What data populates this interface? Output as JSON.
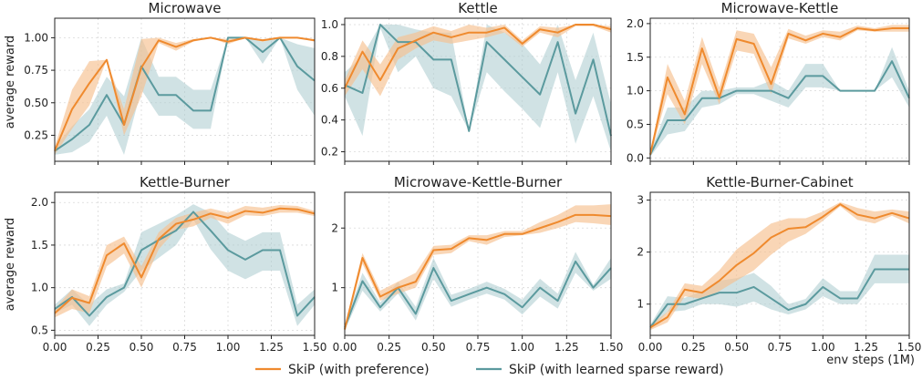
{
  "figure": {
    "ylabel": "average reward",
    "xlabel": "env steps (1M)",
    "legend": [
      {
        "name": "SkiP (with preference)",
        "color": "#ef8a2e",
        "band": "#f6c08f"
      },
      {
        "name": "SkiP (with learned sparse reward)",
        "color": "#5b9a9e",
        "band": "#a9cbcd"
      }
    ]
  },
  "chart_data": [
    {
      "type": "line",
      "title": "Microwave",
      "xlim": [
        0,
        1.5
      ],
      "ylim": [
        0.05,
        1.15
      ],
      "xticks": [
        "0.00",
        "0.25",
        "0.50",
        "0.75",
        "1.00",
        "1.25",
        "1.50"
      ],
      "yticks": [
        0.25,
        0.5,
        0.75,
        1.0
      ],
      "yticklabels": [
        "0.25",
        "0.50",
        "0.75",
        "1.00"
      ],
      "x": [
        0,
        0.1,
        0.2,
        0.3,
        0.4,
        0.5,
        0.6,
        0.7,
        0.8,
        0.9,
        1.0,
        1.1,
        1.2,
        1.3,
        1.4,
        1.5
      ],
      "series": [
        {
          "values": [
            0.13,
            0.45,
            0.65,
            0.83,
            0.33,
            0.77,
            0.98,
            0.93,
            0.98,
            1.0,
            0.97,
            1.0,
            0.98,
            1.0,
            1.0,
            0.98
          ],
          "lower": [
            0.1,
            0.3,
            0.48,
            0.83,
            0.25,
            0.55,
            0.96,
            0.9,
            0.97,
            1.0,
            0.95,
            1.0,
            0.97,
            1.0,
            1.0,
            0.97
          ],
          "upper": [
            0.16,
            0.6,
            0.82,
            0.83,
            0.45,
            0.99,
            1.0,
            0.96,
            0.99,
            1.0,
            0.99,
            1.0,
            0.99,
            1.0,
            1.0,
            0.99
          ]
        },
        {
          "values": [
            0.13,
            0.22,
            0.33,
            0.56,
            0.33,
            0.78,
            0.56,
            0.56,
            0.44,
            0.44,
            1.0,
            1.0,
            0.89,
            1.0,
            0.78,
            0.67
          ],
          "lower": [
            0.1,
            0.12,
            0.2,
            0.4,
            0.1,
            0.6,
            0.4,
            0.4,
            0.3,
            0.3,
            1.0,
            1.0,
            0.8,
            1.0,
            0.6,
            0.4
          ],
          "upper": [
            0.16,
            0.32,
            0.45,
            0.7,
            0.55,
            1.0,
            0.7,
            0.7,
            0.6,
            0.6,
            1.0,
            1.0,
            0.97,
            1.0,
            0.95,
            0.92
          ]
        }
      ]
    },
    {
      "type": "line",
      "title": "Kettle",
      "xlim": [
        0,
        1.5
      ],
      "ylim": [
        0.14,
        1.04
      ],
      "xticks": [
        "0.00",
        "0.25",
        "0.50",
        "0.75",
        "1.00",
        "1.25",
        "1.50"
      ],
      "yticks": [
        0.2,
        0.4,
        0.6,
        0.8,
        1.0
      ],
      "yticklabels": [
        "0.2",
        "0.4",
        "0.6",
        "0.8",
        "1.0"
      ],
      "x": [
        0,
        0.1,
        0.2,
        0.3,
        0.4,
        0.5,
        0.6,
        0.7,
        0.8,
        0.9,
        1.0,
        1.1,
        1.2,
        1.3,
        1.4,
        1.5
      ],
      "series": [
        {
          "values": [
            0.6,
            0.83,
            0.65,
            0.85,
            0.9,
            0.95,
            0.92,
            0.95,
            0.95,
            0.98,
            0.88,
            0.97,
            0.95,
            1.0,
            1.0,
            0.97
          ],
          "lower": [
            0.55,
            0.72,
            0.55,
            0.78,
            0.85,
            0.9,
            0.88,
            0.9,
            0.92,
            0.95,
            0.86,
            0.95,
            0.92,
            0.99,
            0.99,
            0.95
          ],
          "upper": [
            0.65,
            0.9,
            0.75,
            0.92,
            0.95,
            0.99,
            0.96,
            1.0,
            0.98,
            1.0,
            0.9,
            0.99,
            0.98,
            1.0,
            1.0,
            0.99
          ]
        },
        {
          "values": [
            0.62,
            0.57,
            1.0,
            0.89,
            0.89,
            0.78,
            0.78,
            0.33,
            0.89,
            0.78,
            0.67,
            0.56,
            0.89,
            0.44,
            0.78,
            0.3
          ],
          "lower": [
            0.55,
            0.3,
            0.98,
            0.7,
            0.8,
            0.6,
            0.55,
            0.33,
            0.7,
            0.58,
            0.47,
            0.35,
            0.7,
            0.25,
            0.55,
            0.2
          ],
          "upper": [
            0.7,
            0.8,
            1.0,
            1.0,
            0.97,
            0.95,
            0.95,
            0.33,
            1.0,
            0.95,
            0.88,
            0.75,
            1.0,
            0.65,
            0.95,
            0.5
          ]
        }
      ]
    },
    {
      "type": "line",
      "title": "Microwave-Kettle",
      "xlim": [
        0,
        1.5
      ],
      "ylim": [
        -0.05,
        2.08
      ],
      "xticks": [
        "0.00",
        "0.25",
        "0.50",
        "0.75",
        "1.00",
        "1.25",
        "1.50"
      ],
      "yticks": [
        0,
        0.5,
        1.0,
        1.5,
        2.0
      ],
      "yticklabels": [
        "0.0",
        "0.5",
        "1.0",
        "1.5",
        "2.0"
      ],
      "x": [
        0,
        0.1,
        0.2,
        0.3,
        0.4,
        0.5,
        0.6,
        0.7,
        0.8,
        0.9,
        1.0,
        1.1,
        1.2,
        1.3,
        1.4,
        1.5
      ],
      "series": [
        {
          "values": [
            0.05,
            1.2,
            0.65,
            1.63,
            0.9,
            1.77,
            1.7,
            1.1,
            1.85,
            1.75,
            1.85,
            1.8,
            1.93,
            1.9,
            1.93,
            1.93
          ],
          "lower": [
            0.02,
            0.95,
            0.5,
            1.4,
            0.8,
            1.6,
            1.55,
            0.95,
            1.78,
            1.7,
            1.8,
            1.75,
            1.9,
            1.88,
            1.88,
            1.88
          ],
          "upper": [
            0.08,
            1.4,
            0.85,
            1.8,
            1.05,
            1.9,
            1.85,
            1.35,
            1.92,
            1.82,
            1.9,
            1.88,
            1.97,
            1.93,
            1.98,
            1.98
          ]
        },
        {
          "values": [
            0.05,
            0.56,
            0.56,
            0.89,
            0.89,
            1.0,
            1.0,
            1.0,
            0.89,
            1.22,
            1.22,
            1.0,
            1.0,
            1.0,
            1.44,
            0.89
          ],
          "lower": [
            0.02,
            0.35,
            0.4,
            0.75,
            0.8,
            0.95,
            0.95,
            0.85,
            0.75,
            1.05,
            1.05,
            1.0,
            1.0,
            1.0,
            1.2,
            0.75
          ],
          "upper": [
            0.08,
            0.75,
            0.75,
            1.0,
            1.0,
            1.05,
            1.05,
            1.15,
            1.0,
            1.4,
            1.4,
            1.0,
            1.0,
            1.0,
            1.65,
            1.0
          ]
        }
      ]
    },
    {
      "type": "line",
      "title": "Kettle-Burner",
      "xlim": [
        0,
        1.5
      ],
      "ylim": [
        0.44,
        2.12
      ],
      "xticks": [
        "0.00",
        "0.25",
        "0.50",
        "0.75",
        "1.00",
        "1.25",
        "1.50"
      ],
      "yticks": [
        0.5,
        1.0,
        1.5,
        2.0
      ],
      "yticklabels": [
        "0.5",
        "1.0",
        "1.5",
        "2.0"
      ],
      "x": [
        0,
        0.1,
        0.2,
        0.3,
        0.4,
        0.5,
        0.6,
        0.7,
        0.8,
        0.9,
        1.0,
        1.1,
        1.2,
        1.3,
        1.4,
        1.5
      ],
      "series": [
        {
          "values": [
            0.7,
            0.88,
            0.82,
            1.38,
            1.52,
            1.12,
            1.57,
            1.75,
            1.8,
            1.87,
            1.82,
            1.9,
            1.88,
            1.93,
            1.92,
            1.87
          ],
          "lower": [
            0.65,
            0.75,
            0.7,
            1.25,
            1.4,
            1.0,
            1.45,
            1.68,
            1.72,
            1.82,
            1.75,
            1.85,
            1.84,
            1.88,
            1.88,
            1.84
          ],
          "upper": [
            0.75,
            0.98,
            0.9,
            1.5,
            1.6,
            1.25,
            1.65,
            1.82,
            1.88,
            1.93,
            1.88,
            1.96,
            1.94,
            1.97,
            1.96,
            1.9
          ]
        },
        {
          "values": [
            0.75,
            0.89,
            0.67,
            0.89,
            1.0,
            1.44,
            1.56,
            1.67,
            1.89,
            1.67,
            1.44,
            1.33,
            1.44,
            1.44,
            0.67,
            0.89
          ],
          "lower": [
            0.7,
            0.8,
            0.55,
            0.8,
            0.95,
            1.2,
            1.35,
            1.5,
            1.8,
            1.45,
            1.2,
            1.1,
            1.2,
            1.2,
            0.55,
            0.8
          ],
          "upper": [
            0.8,
            0.98,
            0.8,
            0.98,
            1.05,
            1.65,
            1.75,
            1.85,
            1.98,
            1.88,
            1.65,
            1.55,
            1.65,
            1.65,
            0.8,
            0.98
          ]
        }
      ]
    },
    {
      "type": "line",
      "title": "Microwave-Kettle-Burner",
      "xlim": [
        0,
        1.5
      ],
      "ylim": [
        0.2,
        2.6
      ],
      "xticks": [
        "0.00",
        "0.25",
        "0.50",
        "0.75",
        "1.00",
        "1.25",
        "1.50"
      ],
      "yticks": [
        1,
        2
      ],
      "yticklabels": [
        "1",
        "2"
      ],
      "x": [
        0,
        0.1,
        0.2,
        0.3,
        0.4,
        0.5,
        0.6,
        0.7,
        0.8,
        0.9,
        1.0,
        1.1,
        1.2,
        1.3,
        1.4,
        1.5
      ],
      "series": [
        {
          "values": [
            0.3,
            1.5,
            0.85,
            1.0,
            1.1,
            1.63,
            1.65,
            1.83,
            1.8,
            1.9,
            1.9,
            2.0,
            2.1,
            2.22,
            2.22,
            2.2
          ],
          "lower": [
            0.25,
            1.4,
            0.78,
            0.9,
            1.0,
            1.55,
            1.58,
            1.78,
            1.72,
            1.85,
            1.88,
            1.92,
            2.0,
            2.1,
            2.08,
            2.05
          ],
          "upper": [
            0.35,
            1.58,
            0.95,
            1.1,
            1.25,
            1.7,
            1.72,
            1.88,
            1.88,
            1.95,
            1.95,
            2.1,
            2.22,
            2.38,
            2.38,
            2.4
          ]
        },
        {
          "values": [
            0.33,
            1.11,
            0.67,
            1.0,
            0.56,
            1.33,
            0.78,
            0.89,
            1.0,
            0.89,
            0.67,
            1.0,
            0.78,
            1.44,
            1.0,
            1.33
          ],
          "lower": [
            0.28,
            0.95,
            0.6,
            0.9,
            0.45,
            1.15,
            0.68,
            0.8,
            0.9,
            0.8,
            0.55,
            0.85,
            0.65,
            1.25,
            0.95,
            1.15
          ],
          "upper": [
            0.38,
            1.25,
            0.75,
            1.1,
            0.68,
            1.5,
            0.88,
            0.98,
            1.1,
            0.98,
            0.8,
            1.15,
            0.9,
            1.6,
            1.05,
            1.5
          ]
        }
      ]
    },
    {
      "type": "line",
      "title": "Kettle-Burner-Cabinet",
      "xlim": [
        0,
        1.5
      ],
      "ylim": [
        0.4,
        3.15
      ],
      "xticks": [
        "0.00",
        "0.25",
        "0.50",
        "0.75",
        "1.00",
        "1.25",
        "1.50"
      ],
      "yticks": [
        1,
        2,
        3
      ],
      "yticklabels": [
        "1",
        "2",
        "3"
      ],
      "x": [
        0,
        0.1,
        0.2,
        0.3,
        0.4,
        0.5,
        0.6,
        0.7,
        0.8,
        0.9,
        1.0,
        1.1,
        1.2,
        1.3,
        1.4,
        1.5
      ],
      "series": [
        {
          "values": [
            0.55,
            0.75,
            1.28,
            1.22,
            1.45,
            1.75,
            1.98,
            2.28,
            2.45,
            2.48,
            2.68,
            2.92,
            2.72,
            2.65,
            2.75,
            2.65
          ],
          "lower": [
            0.5,
            0.65,
            1.15,
            1.1,
            1.25,
            1.45,
            1.65,
            1.95,
            2.2,
            2.35,
            2.6,
            2.88,
            2.62,
            2.55,
            2.7,
            2.55
          ],
          "upper": [
            0.6,
            0.85,
            1.4,
            1.35,
            1.65,
            2.05,
            2.3,
            2.55,
            2.65,
            2.65,
            2.78,
            2.96,
            2.85,
            2.78,
            2.82,
            2.78
          ]
        },
        {
          "values": [
            0.55,
            1.0,
            1.0,
            1.11,
            1.22,
            1.22,
            1.33,
            1.11,
            0.89,
            1.0,
            1.33,
            1.11,
            1.11,
            1.67,
            1.67,
            1.67
          ],
          "lower": [
            0.5,
            0.85,
            0.88,
            1.0,
            1.0,
            0.95,
            1.05,
            0.9,
            0.8,
            0.9,
            1.15,
            1.0,
            1.0,
            1.4,
            1.4,
            1.4
          ],
          "upper": [
            0.6,
            1.15,
            1.12,
            1.25,
            1.45,
            1.5,
            1.6,
            1.35,
            1.0,
            1.1,
            1.5,
            1.25,
            1.25,
            1.95,
            1.95,
            1.95
          ]
        }
      ]
    }
  ]
}
